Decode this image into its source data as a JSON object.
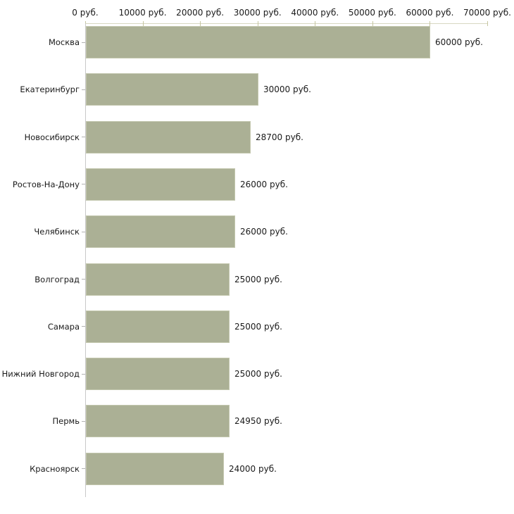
{
  "chart_data": {
    "type": "bar",
    "orientation": "horizontal",
    "title": "",
    "xlabel": "",
    "ylabel": "",
    "xlim": [
      0,
      70000
    ],
    "x_tick_step": 10000,
    "x_tick_labels": [
      "0 руб.",
      "10000 руб.",
      "20000 руб.",
      "30000 руб.",
      "40000 руб.",
      "50000 руб.",
      "60000 руб.",
      "70000 руб."
    ],
    "categories": [
      "Москва",
      "Екатеринбург",
      "Новосибирск",
      "Ростов-На-Дону",
      "Челябинск",
      "Волгоград",
      "Самара",
      "Нижний Новгород",
      "Пермь",
      "Красноярск"
    ],
    "values": [
      60000,
      30000,
      28700,
      26000,
      26000,
      25000,
      25000,
      25000,
      24950,
      24000
    ],
    "value_labels": [
      "60000 руб.",
      "30000 руб.",
      "28700 руб.",
      "26000 руб.",
      "26000 руб.",
      "25000 руб.",
      "25000 руб.",
      "25000 руб.",
      "24950 руб.",
      "24000 руб."
    ],
    "unit": "руб.",
    "grid": "off",
    "legend": "none",
    "colors": {
      "background": "#ffffff",
      "bar_fill": "#abb095",
      "bar_border": "#c3c7ae",
      "x_axis_line": "#d8d8c2",
      "x_axis_tick": "#c6c6a0",
      "y_axis_line": "#c9c9c9",
      "category_tick": "#b2b2b2",
      "text": "#1a1a1a"
    }
  }
}
